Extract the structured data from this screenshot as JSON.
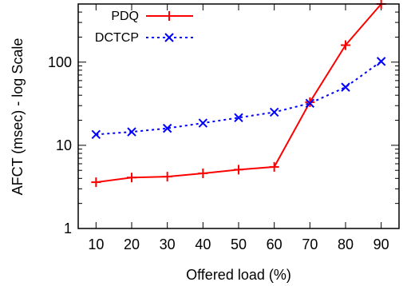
{
  "chart_data": {
    "type": "line",
    "xlabel": "Offered load (%)",
    "ylabel": "AFCT (msec) - log Scale",
    "x": [
      10,
      20,
      30,
      40,
      50,
      60,
      70,
      80,
      90
    ],
    "xlim": [
      5,
      95
    ],
    "ylim": [
      1,
      500
    ],
    "y_scale": "log",
    "y_ticks": [
      1,
      10,
      100
    ],
    "grid": false,
    "legend_position": "top-left",
    "series": [
      {
        "name": "PDQ",
        "color": "#ff0000",
        "line_style": "solid",
        "marker": "plus",
        "values": [
          3.6,
          4.1,
          4.2,
          4.6,
          5.1,
          5.5,
          33,
          160,
          500
        ]
      },
      {
        "name": "DCTCP",
        "color": "#0000ff",
        "line_style": "dotted",
        "marker": "cross",
        "values": [
          13.5,
          14.5,
          16,
          18.5,
          21.5,
          25,
          32,
          50,
          102
        ]
      }
    ]
  }
}
